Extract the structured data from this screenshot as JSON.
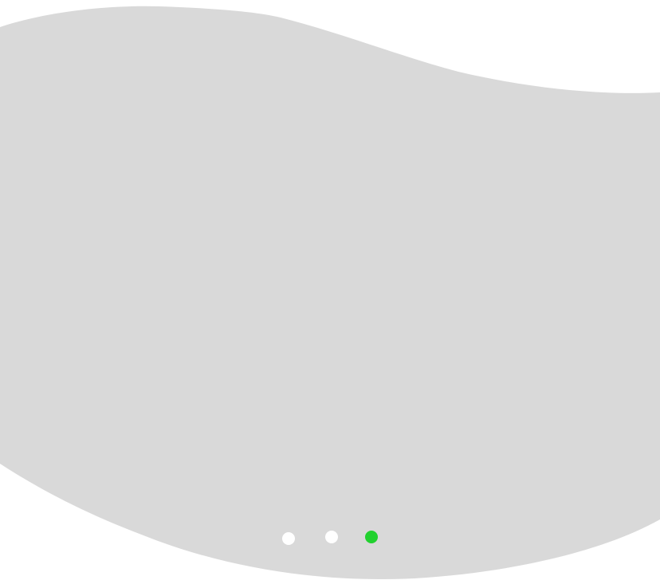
{
  "carousel": {
    "background_color": "#d9d9d9",
    "page_background": "#ffffff",
    "page_count": 3,
    "active_index": 2,
    "dots": [
      {
        "state": "inactive",
        "color": "#ffffff"
      },
      {
        "state": "inactive",
        "color": "#ffffff"
      },
      {
        "state": "active",
        "color": "#22d12f"
      }
    ]
  }
}
